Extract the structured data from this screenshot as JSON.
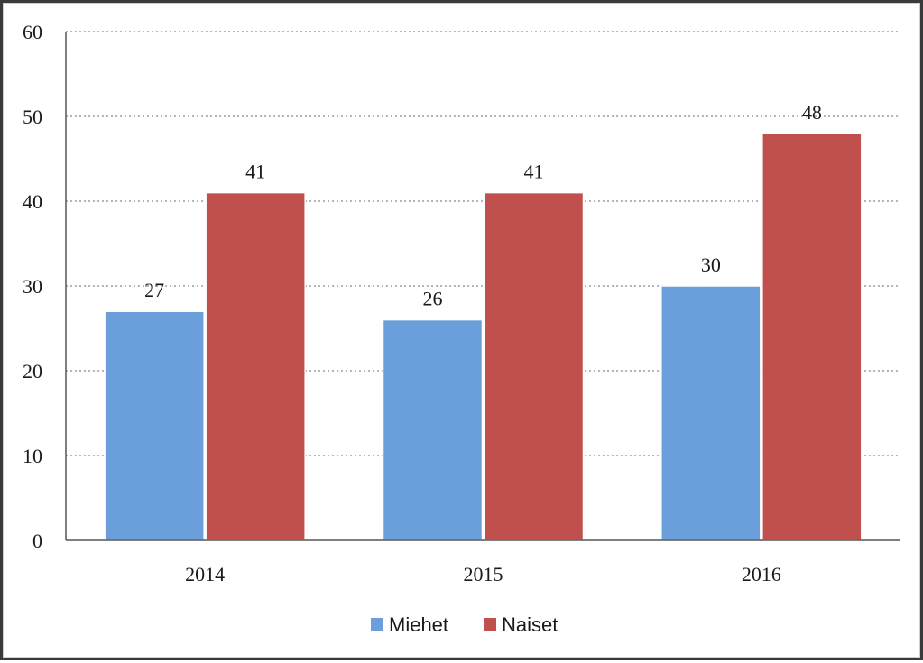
{
  "chart_data": {
    "type": "bar",
    "title": "",
    "xlabel": "",
    "ylabel": "",
    "categories": [
      "2014",
      "2015",
      "2016"
    ],
    "series": [
      {
        "name": "Miehet",
        "values": [
          27,
          26,
          30
        ],
        "color": "#6a9fdb"
      },
      {
        "name": "Naiset",
        "values": [
          41,
          41,
          48
        ],
        "color": "#c0504d"
      }
    ],
    "ylim": [
      0,
      60
    ],
    "yticks": [
      "0",
      "10",
      "20",
      "30",
      "40",
      "50",
      "60"
    ],
    "grid": true,
    "legend_position": "bottom"
  }
}
